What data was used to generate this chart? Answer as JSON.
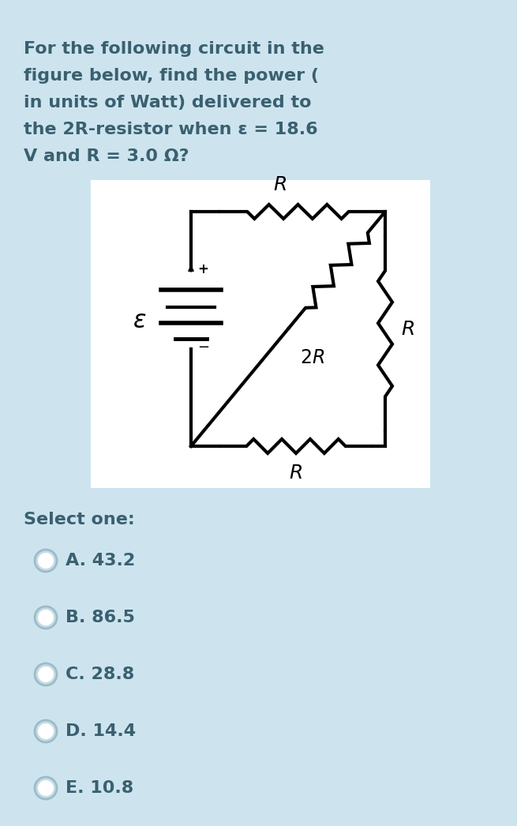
{
  "bg_color": "#cde4ef",
  "circuit_bg": "#ffffff",
  "text_color": "#3a6070",
  "question_text_lines": [
    "For the following circuit in the",
    "figure below, find the power (",
    "in units of Watt) delivered to",
    "the 2R-resistor when ε = 18.6",
    "V and R = 3.0 Ω?"
  ],
  "select_label": "Select one:",
  "options": [
    "A. 43.2",
    "B. 86.5",
    "C. 28.8",
    "D. 14.4",
    "E. 10.8"
  ],
  "font_size_question": 16.0,
  "font_size_options": 16.0,
  "font_size_select": 16.0,
  "lw_circuit": 3.0,
  "circuit_color": "#000000",
  "radio_outer_color": "#9bbcc8",
  "radio_fill_color": "#c8dce4"
}
